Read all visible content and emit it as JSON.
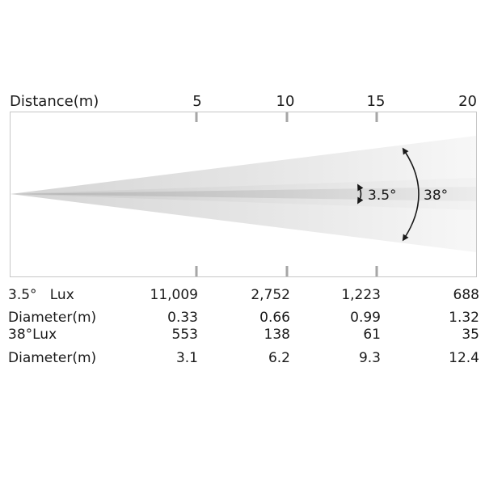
{
  "header": {
    "distance_label": "Distance(m)",
    "ticks": [
      "5",
      "10",
      "15",
      "20"
    ]
  },
  "beam": {
    "narrow_angle_label": "3.5°",
    "wide_angle_label": "38°"
  },
  "table": {
    "rows": [
      {
        "label": "3.5°   Lux",
        "values": [
          "11,009",
          "2,752",
          "1,223",
          "688"
        ]
      },
      {
        "label": "Diameter(m)",
        "values": [
          "0.33",
          "0.66",
          "0.99",
          "1.32"
        ]
      },
      {
        "label": "38°Lux",
        "values": [
          "553",
          "138",
          "61",
          "35"
        ]
      },
      {
        "label": "Diameter(m)",
        "values": [
          "3.1",
          "6.2",
          "9.3",
          "12.4"
        ]
      }
    ]
  }
}
